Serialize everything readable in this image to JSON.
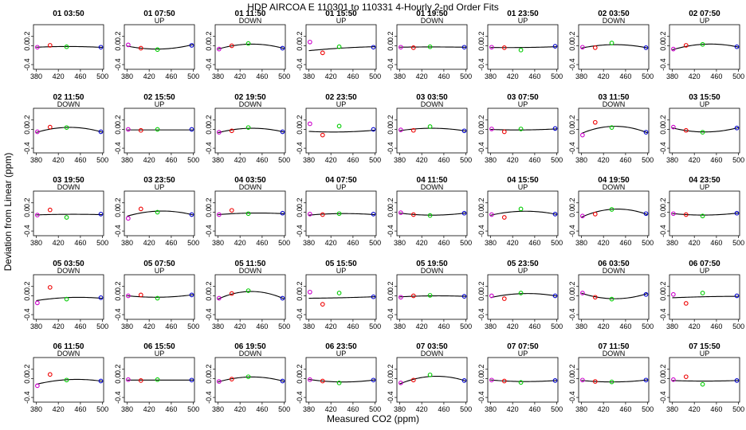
{
  "chart_data": {
    "type": "scatter",
    "title": "HDP    AIRCOA E    110301 to 110331    4-Hourly 2-nd Order Fits",
    "xlabel": "Measured CO2 (ppm)",
    "ylabel": "Deviation from Linear (ppm)",
    "xlim": [
      375,
      502
    ],
    "ylim": [
      -0.5,
      0.45
    ],
    "xticks": [
      "380",
      "420",
      "460",
      "500"
    ],
    "yticks": [
      "-0.4",
      "0.0",
      "0.2"
    ],
    "x_standards": [
      382,
      405,
      435,
      497
    ],
    "colors": {
      "std1": "#cc00cc",
      "std2": "#ee0000",
      "std3": "#00cc00",
      "std4": "#0000cc",
      "fit": "#000000"
    },
    "panels": [
      {
        "title": "01 03:50",
        "direction": "",
        "points": [
          -0.03,
          0.01,
          -0.02,
          -0.03
        ],
        "curve": [
          -0.032,
          -0.015,
          -0.018,
          -0.032
        ]
      },
      {
        "title": "01 07:50",
        "direction": "UP",
        "points": [
          0.02,
          -0.05,
          -0.08,
          0.01
        ],
        "curve": [
          -0.01,
          -0.05,
          -0.07,
          0.02
        ]
      },
      {
        "title": "01 11:50",
        "direction": "DOWN",
        "points": [
          -0.07,
          0.0,
          0.05,
          -0.05
        ],
        "curve": [
          -0.06,
          -0.01,
          0.04,
          -0.05
        ]
      },
      {
        "title": "01 15:50",
        "direction": "UP",
        "points": [
          0.08,
          -0.15,
          -0.02,
          -0.03
        ],
        "curve": [
          -0.1,
          -0.08,
          -0.05,
          -0.02
        ]
      },
      {
        "title": "01 19:50",
        "direction": "DOWN",
        "points": [
          -0.03,
          -0.04,
          -0.02,
          -0.03
        ],
        "curve": [
          -0.03,
          -0.025,
          -0.025,
          -0.03
        ]
      },
      {
        "title": "01 23:50",
        "direction": "UP",
        "points": [
          -0.03,
          -0.04,
          -0.09,
          -0.01
        ],
        "curve": [
          -0.035,
          -0.04,
          -0.035,
          -0.02
        ]
      },
      {
        "title": "02 03:50",
        "direction": "DOWN",
        "points": [
          -0.03,
          -0.04,
          0.06,
          -0.04
        ],
        "curve": [
          -0.04,
          -0.01,
          0.03,
          -0.04
        ]
      },
      {
        "title": "02 07:50",
        "direction": "UP",
        "points": [
          -0.07,
          0.01,
          0.03,
          -0.02
        ],
        "curve": [
          -0.08,
          -0.01,
          0.03,
          -0.02
        ]
      },
      {
        "title": "02 11:50",
        "direction": "DOWN",
        "points": [
          -0.05,
          0.05,
          0.04,
          -0.05
        ],
        "curve": [
          -0.06,
          0.01,
          0.04,
          -0.05
        ]
      },
      {
        "title": "02 15:50",
        "direction": "UP",
        "points": [
          0.0,
          -0.02,
          0.0,
          0.0
        ],
        "curve": [
          -0.01,
          -0.01,
          -0.01,
          -0.01
        ]
      },
      {
        "title": "02 19:50",
        "direction": "DOWN",
        "points": [
          -0.06,
          -0.03,
          0.04,
          -0.05
        ],
        "curve": [
          -0.06,
          -0.02,
          0.03,
          -0.05
        ]
      },
      {
        "title": "02 23:50",
        "direction": "UP",
        "points": [
          0.12,
          -0.12,
          0.07,
          0.0
        ],
        "curve": [
          -0.04,
          -0.06,
          -0.05,
          -0.02
        ]
      },
      {
        "title": "03 03:50",
        "direction": "DOWN",
        "points": [
          -0.01,
          -0.02,
          0.06,
          -0.03
        ],
        "curve": [
          -0.02,
          0.0,
          0.03,
          -0.03
        ]
      },
      {
        "title": "03 07:50",
        "direction": "UP",
        "points": [
          0.01,
          -0.05,
          0.01,
          0.02
        ],
        "curve": [
          0.0,
          -0.01,
          -0.01,
          0.01
        ]
      },
      {
        "title": "03 11:50",
        "direction": "DOWN",
        "points": [
          -0.12,
          0.15,
          0.04,
          -0.06
        ],
        "curve": [
          -0.08,
          0.02,
          0.06,
          -0.06
        ]
      },
      {
        "title": "03 15:50",
        "direction": "UP",
        "points": [
          0.05,
          -0.02,
          -0.06,
          0.03
        ],
        "curve": [
          0.03,
          -0.03,
          -0.05,
          0.03
        ]
      },
      {
        "title": "03 19:50",
        "direction": "DOWN",
        "points": [
          -0.06,
          0.05,
          -0.11,
          -0.04
        ],
        "curve": [
          -0.06,
          -0.04,
          -0.05,
          -0.05
        ]
      },
      {
        "title": "03 23:50",
        "direction": "UP",
        "points": [
          -0.13,
          0.07,
          0.0,
          -0.05
        ],
        "curve": [
          -0.08,
          -0.01,
          0.02,
          -0.05
        ]
      },
      {
        "title": "04 03:50",
        "direction": "DOWN",
        "points": [
          -0.05,
          0.04,
          -0.03,
          -0.02
        ],
        "curve": [
          -0.05,
          -0.03,
          -0.02,
          -0.03
        ]
      },
      {
        "title": "04 07:50",
        "direction": "UP",
        "points": [
          -0.04,
          -0.05,
          -0.03,
          -0.04
        ],
        "curve": [
          -0.06,
          -0.04,
          -0.03,
          -0.05
        ]
      },
      {
        "title": "04 11:50",
        "direction": "DOWN",
        "points": [
          -0.01,
          -0.05,
          -0.07,
          -0.02
        ],
        "curve": [
          -0.02,
          -0.05,
          -0.06,
          -0.02
        ]
      },
      {
        "title": "04 15:50",
        "direction": "UP",
        "points": [
          -0.05,
          -0.11,
          0.07,
          -0.04
        ],
        "curve": [
          -0.06,
          -0.01,
          0.02,
          -0.04
        ]
      },
      {
        "title": "04 19:50",
        "direction": "DOWN",
        "points": [
          -0.08,
          -0.04,
          0.06,
          -0.03
        ],
        "curve": [
          -0.09,
          -0.01,
          0.07,
          -0.04
        ]
      },
      {
        "title": "04 23:50",
        "direction": "UP",
        "points": [
          -0.03,
          -0.05,
          -0.08,
          -0.02
        ],
        "curve": [
          -0.03,
          -0.05,
          -0.06,
          -0.02
        ]
      },
      {
        "title": "05 03:50",
        "direction": "DOWN",
        "points": [
          -0.15,
          0.18,
          -0.07,
          -0.04
        ],
        "curve": [
          -0.1,
          -0.06,
          -0.04,
          -0.05
        ]
      },
      {
        "title": "05 07:50",
        "direction": "UP",
        "points": [
          0.0,
          0.02,
          -0.05,
          0.02
        ],
        "curve": [
          0.0,
          -0.02,
          -0.03,
          0.02
        ]
      },
      {
        "title": "05 11:50",
        "direction": "DOWN",
        "points": [
          -0.05,
          0.05,
          0.11,
          -0.05
        ],
        "curve": [
          -0.06,
          0.04,
          0.09,
          -0.05
        ]
      },
      {
        "title": "05 15:50",
        "direction": "UP",
        "points": [
          0.08,
          -0.18,
          0.06,
          -0.02
        ],
        "curve": [
          -0.05,
          -0.05,
          -0.04,
          -0.02
        ]
      },
      {
        "title": "05 19:50",
        "direction": "DOWN",
        "points": [
          -0.03,
          0.0,
          0.01,
          -0.01
        ],
        "curve": [
          -0.02,
          -0.01,
          0.0,
          -0.01
        ]
      },
      {
        "title": "05 23:50",
        "direction": "UP",
        "points": [
          0.0,
          -0.06,
          0.06,
          0.0
        ],
        "curve": [
          -0.03,
          0.01,
          0.05,
          0.0
        ]
      },
      {
        "title": "06 03:50",
        "direction": "DOWN",
        "points": [
          0.06,
          -0.03,
          -0.07,
          0.03
        ],
        "curve": [
          0.05,
          -0.02,
          -0.06,
          0.04
        ]
      },
      {
        "title": "06 07:50",
        "direction": "UP",
        "points": [
          0.03,
          -0.16,
          0.06,
          0.0
        ],
        "curve": [
          -0.04,
          -0.03,
          -0.02,
          -0.01
        ]
      },
      {
        "title": "06 11:50",
        "direction": "DOWN",
        "points": [
          -0.15,
          0.09,
          -0.03,
          -0.05
        ],
        "curve": [
          -0.12,
          -0.05,
          -0.03,
          -0.05
        ]
      },
      {
        "title": "06 15:50",
        "direction": "UP",
        "points": [
          -0.02,
          -0.04,
          -0.02,
          -0.03
        ],
        "curve": [
          -0.03,
          -0.03,
          -0.03,
          -0.03
        ]
      },
      {
        "title": "06 19:50",
        "direction": "DOWN",
        "points": [
          -0.06,
          -0.01,
          0.04,
          -0.05
        ],
        "curve": [
          -0.06,
          -0.01,
          0.04,
          -0.05
        ]
      },
      {
        "title": "06 23:50",
        "direction": "UP",
        "points": [
          -0.02,
          -0.05,
          -0.09,
          -0.03
        ],
        "curve": [
          -0.02,
          -0.05,
          -0.07,
          -0.03
        ]
      },
      {
        "title": "07 03:50",
        "direction": "DOWN",
        "points": [
          -0.09,
          -0.03,
          0.08,
          -0.04
        ],
        "curve": [
          -0.1,
          -0.02,
          0.05,
          -0.04
        ]
      },
      {
        "title": "07 07:50",
        "direction": "UP",
        "points": [
          -0.03,
          -0.05,
          -0.08,
          -0.04
        ],
        "curve": [
          -0.03,
          -0.05,
          -0.06,
          -0.04
        ]
      },
      {
        "title": "07 11:50",
        "direction": "DOWN",
        "points": [
          -0.03,
          -0.06,
          -0.07,
          -0.03
        ],
        "curve": [
          -0.04,
          -0.06,
          -0.07,
          -0.03
        ]
      },
      {
        "title": "07 15:50",
        "direction": "UP",
        "points": [
          -0.02,
          0.04,
          -0.12,
          -0.04
        ],
        "curve": [
          -0.04,
          -0.05,
          -0.05,
          -0.04
        ]
      }
    ]
  }
}
